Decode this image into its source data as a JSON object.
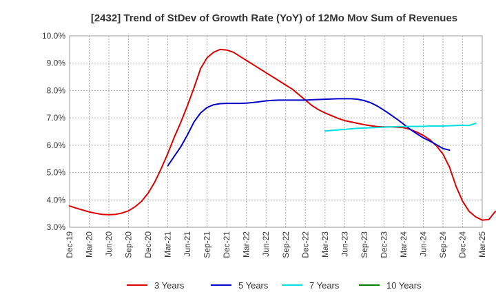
{
  "chart_data": {
    "type": "line",
    "title": "[2432]  Trend of StDev of Growth Rate (YoY) of 12Mo Mov Sum of Revenues",
    "xlabel": "",
    "ylabel": "",
    "ylim": [
      3.0,
      10.0
    ],
    "y_ticks": [
      3.0,
      4.0,
      5.0,
      6.0,
      7.0,
      8.0,
      9.0,
      10.0
    ],
    "y_tick_labels": [
      "3.0%",
      "4.0%",
      "5.0%",
      "6.0%",
      "7.0%",
      "8.0%",
      "9.0%",
      "10.0%"
    ],
    "x_tick_labels": [
      "Dec-19",
      "Mar-20",
      "Jun-20",
      "Sep-20",
      "Dec-20",
      "Mar-21",
      "Jun-21",
      "Sep-21",
      "Dec-21",
      "Mar-22",
      "Jun-22",
      "Sep-22",
      "Dec-22",
      "Mar-23",
      "Jun-23",
      "Sep-23",
      "Dec-23",
      "Mar-24",
      "Jun-24",
      "Sep-24",
      "Dec-24",
      "Mar-25"
    ],
    "x_start": "Dec-19",
    "x_step_months": 1,
    "grid": true,
    "legend_position": "bottom",
    "series": [
      {
        "name": "3 Years",
        "color": "#dd0000",
        "start_index": 0,
        "values": [
          3.78,
          3.7,
          3.63,
          3.56,
          3.51,
          3.47,
          3.46,
          3.47,
          3.52,
          3.6,
          3.75,
          3.95,
          4.25,
          4.65,
          5.15,
          5.7,
          6.3,
          6.85,
          7.45,
          8.1,
          8.8,
          9.2,
          9.4,
          9.5,
          9.48,
          9.4,
          9.25,
          9.1,
          8.95,
          8.8,
          8.65,
          8.5,
          8.35,
          8.2,
          8.05,
          7.85,
          7.65,
          7.45,
          7.3,
          7.18,
          7.08,
          6.98,
          6.9,
          6.85,
          6.8,
          6.75,
          6.71,
          6.68,
          6.67,
          6.67,
          6.66,
          6.64,
          6.58,
          6.48,
          6.36,
          6.2,
          5.98,
          5.68,
          5.2,
          4.5,
          3.95,
          3.58,
          3.38,
          3.26,
          3.28,
          3.58
        ]
      },
      {
        "name": "5 Years",
        "color": "#0000cc",
        "start_index": 15,
        "values": [
          5.25,
          5.6,
          5.95,
          6.38,
          6.85,
          7.18,
          7.38,
          7.48,
          7.52,
          7.53,
          7.53,
          7.53,
          7.54,
          7.56,
          7.59,
          7.62,
          7.64,
          7.65,
          7.65,
          7.65,
          7.65,
          7.65,
          7.66,
          7.67,
          7.68,
          7.69,
          7.7,
          7.7,
          7.7,
          7.68,
          7.63,
          7.55,
          7.43,
          7.28,
          7.12,
          6.95,
          6.77,
          6.58,
          6.42,
          6.27,
          6.15,
          6.02,
          5.88,
          5.82
        ]
      },
      {
        "name": "7 Years",
        "color": "#00e0e0",
        "start_index": 39,
        "values": [
          6.52,
          6.54,
          6.56,
          6.58,
          6.6,
          6.62,
          6.63,
          6.64,
          6.65,
          6.66,
          6.67,
          6.68,
          6.68,
          6.69,
          6.69,
          6.69,
          6.7,
          6.7,
          6.7,
          6.71,
          6.72,
          6.73,
          6.72,
          6.8
        ]
      },
      {
        "name": "10 Years",
        "color": "#008000",
        "start_index": 0,
        "values": []
      }
    ]
  }
}
